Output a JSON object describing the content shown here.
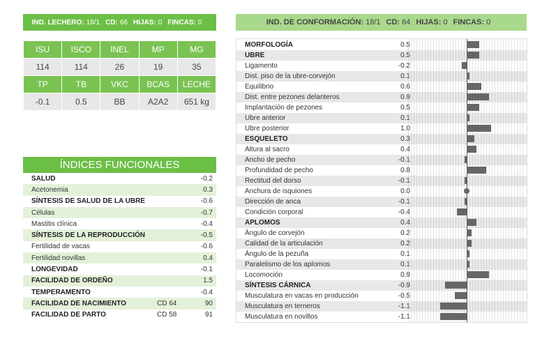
{
  "lechero": {
    "label1": "IND. LECHERO:",
    "val1": "18/1",
    "label2": "CD:",
    "val2": "66",
    "label3": "HIJAS:",
    "val3": "0",
    "label4": "FINCAS:",
    "val4": "0"
  },
  "stats": {
    "row1_headers": [
      "ISU",
      "ISCO",
      "INEL",
      "MP",
      "MG"
    ],
    "row1_values": [
      "114",
      "114",
      "26",
      "19",
      "35"
    ],
    "row2_headers": [
      "TP",
      "TB",
      "VKC",
      "BCAS",
      "LECHE"
    ],
    "row2_values": [
      "-0.1",
      "0.5",
      "BB",
      "A2A2",
      "651 kg"
    ]
  },
  "funcionales": {
    "title": "ÍNDICES FUNCIONALES",
    "rows": [
      {
        "name": "SALUD",
        "value": "-0.2",
        "bold": true
      },
      {
        "name": "Acetonemia",
        "value": "0.3"
      },
      {
        "name": "SÍNTESIS DE SALUD DE LA UBRE",
        "value": "-0.6",
        "bold": true
      },
      {
        "name": "Células",
        "value": "-0.7"
      },
      {
        "name": "Mastitis clínica",
        "value": "-0.4"
      },
      {
        "name": "SÍNTESIS DE LA REPRODUCCIÓN",
        "value": "-0.5",
        "bold": true
      },
      {
        "name": "Fertilidad de vacas",
        "value": "-0.6"
      },
      {
        "name": "Fertilidad novillas",
        "value": "0.4"
      },
      {
        "name": "LONGEVIDAD",
        "value": "-0.1",
        "bold": true
      },
      {
        "name": "FACILIDAD DE ORDEÑO",
        "value": "1.5",
        "bold": true
      },
      {
        "name": "TEMPERAMENTO",
        "value": "-0.4",
        "bold": true
      },
      {
        "name": "FACILIDAD DE NACIMIENTO",
        "cd": "CD 64",
        "value": "90",
        "bold": true
      },
      {
        "name": "FACILIDAD DE PARTO",
        "cd": "CD 58",
        "value": "91",
        "bold": true
      }
    ]
  },
  "conformacion": {
    "label1": "IND. DE CONFORMACIÓN:",
    "val1": "18/1",
    "label2": "CD:",
    "val2": "64",
    "label3": "HIJAS:",
    "val3": "0",
    "label4": "FINCAS:",
    "val4": "0"
  },
  "chart_data": {
    "type": "bar",
    "orientation": "horizontal",
    "xlim": [
      -2.4,
      2.4
    ],
    "categories": [
      "MORFOLOGÍA",
      "UBRE",
      "Ligamento",
      "Dist. piso de la ubre-corvejón",
      "Equilibrio",
      "Dist. entre pezones delanteros",
      "Implantación de pezones",
      "Ubre anterior",
      "Ubre posterior",
      "ESQUELETO",
      "Altura al sacro",
      "Ancho de pecho",
      "Profundidad de pecho",
      "Rectitud del dorso",
      "Anchura de isquiones",
      "Dirección de anca",
      "Condición corporal",
      "APLOMOS",
      "Ángulo de corvejón",
      "Calidad de la articulación",
      "Ángulo de la pezuña",
      "Paralelismo de los aplomos",
      "Locomoción",
      "SÍNTESIS CÁRNICA",
      "Musculatura en vacas en producción",
      "Musculatura en terneros",
      "Musculatura en novillos"
    ],
    "values": [
      0.5,
      0.5,
      -0.2,
      0.1,
      0.6,
      0.9,
      0.5,
      0.1,
      1.0,
      0.3,
      0.4,
      -0.1,
      0.8,
      -0.1,
      0.0,
      -0.1,
      -0.4,
      0.4,
      0.2,
      0.2,
      0.1,
      0.1,
      0.9,
      -0.9,
      -0.5,
      -1.1,
      -1.1
    ],
    "labels": [
      "0.5",
      "0.5",
      "-0.2",
      "0.1",
      "0.6",
      "0.9",
      "0.5",
      "0.1",
      "1.0",
      "0.3",
      "0.4",
      "-0.1",
      "0.8",
      "-0.1",
      "0.0",
      "-0.1",
      "-0.4",
      "0.4",
      "0.2",
      "0.2",
      "0.1",
      "0.1",
      "0.9",
      "-0.9",
      "-0.5",
      "-1.1",
      "-1.1"
    ],
    "bold": [
      0,
      1,
      9,
      17,
      23
    ],
    "bar_color": "#666666"
  }
}
